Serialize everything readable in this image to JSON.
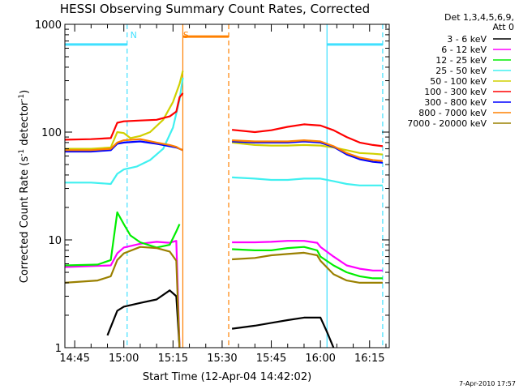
{
  "chart_data": {
    "type": "line",
    "title": "HESSI Observing Summary Count Rates, Corrected",
    "xlabel": "Start Time (12-Apr-04 14:42:02)",
    "ylabel": "Corrected Count Rate (s⁻¹ detector⁻¹)",
    "ylabel_parts": [
      "Corrected Count Rate (s",
      "-1",
      " detector",
      "-1",
      ")"
    ],
    "yscale": "log",
    "xlim": [
      "14:42",
      "16:21"
    ],
    "ylim": [
      1,
      1000
    ],
    "x_ticks": [
      "14:45",
      "15:00",
      "15:15",
      "15:30",
      "15:45",
      "16:00",
      "16:15"
    ],
    "y_ticks": [
      "1",
      "10",
      "100",
      "1000"
    ],
    "legend_title": [
      "Det 1,3,4,5,6,9,",
      "Att 0"
    ],
    "legend_position": "right",
    "timestamp": "7-Apr-2010 17:57",
    "annotations": [
      {
        "label": "N",
        "time": "15:01",
        "color": "#40e0ff"
      },
      {
        "label": "S",
        "time": "15:17",
        "color": "#ff8000"
      }
    ],
    "bars": [
      {
        "name": "night",
        "start": "14:42",
        "end": "15:01",
        "y": 650,
        "color": "#40e0ff"
      },
      {
        "name": "night",
        "start": "16:02",
        "end": "16:19",
        "y": 650,
        "color": "#40e0ff"
      },
      {
        "name": "saa",
        "start": "15:18",
        "end": "15:32",
        "y": 770,
        "color": "#ff8000"
      }
    ],
    "vlines": [
      {
        "time": "15:01",
        "color": "#40e0ff",
        "style": "dashed"
      },
      {
        "time": "16:02",
        "color": "#40e0ff",
        "style": "solid"
      },
      {
        "time": "16:19",
        "color": "#40e0ff",
        "style": "dashed"
      },
      {
        "time": "15:18",
        "color": "#ff8000",
        "style": "solid"
      },
      {
        "time": "15:32",
        "color": "#ff8000",
        "style": "dashed"
      }
    ],
    "series": [
      {
        "name": "3 - 6 keV",
        "color": "#000000",
        "segments": [
          {
            "x": [
              "14:55",
              "14:58",
              "15:00",
              "15:05",
              "15:10",
              "15:14",
              "15:16",
              "15:17"
            ],
            "y": [
              1.3,
              2.2,
              2.4,
              2.6,
              2.8,
              3.4,
              3.0,
              1.0
            ]
          },
          {
            "x": [
              "15:33",
              "15:40",
              "15:45",
              "15:50",
              "15:55",
              "16:00",
              "16:02",
              "16:04"
            ],
            "y": [
              1.5,
              1.6,
              1.7,
              1.8,
              1.9,
              1.9,
              1.4,
              1.0
            ]
          }
        ]
      },
      {
        "name": "6 - 12 keV",
        "color": "#ff00ff",
        "segments": [
          {
            "x": [
              "14:42",
              "14:56",
              "14:58",
              "15:00",
              "15:05",
              "15:10",
              "15:14",
              "15:16",
              "15:17"
            ],
            "y": [
              5.6,
              5.8,
              7.5,
              8.5,
              9.2,
              9.6,
              9.4,
              9.8,
              1.0
            ]
          },
          {
            "x": [
              "15:33",
              "15:40",
              "15:45",
              "15:50",
              "15:55",
              "15:59",
              "16:00",
              "16:04",
              "16:08",
              "16:12",
              "16:16",
              "16:19"
            ],
            "y": [
              9.5,
              9.5,
              9.6,
              9.8,
              9.8,
              9.4,
              8.6,
              7.0,
              5.8,
              5.4,
              5.2,
              5.2
            ]
          }
        ]
      },
      {
        "name": "12 - 25 keV",
        "color": "#00ee00",
        "segments": [
          {
            "x": [
              "14:42",
              "14:52",
              "14:56",
              "14:58",
              "15:00",
              "15:02",
              "15:05",
              "15:10",
              "15:14",
              "15:16",
              "15:17"
            ],
            "y": [
              5.8,
              5.9,
              6.5,
              18,
              14,
              11,
              9.5,
              8.5,
              9.0,
              12,
              14
            ]
          },
          {
            "x": [
              "15:33",
              "15:40",
              "15:45",
              "15:50",
              "15:55",
              "15:59",
              "16:00",
              "16:04",
              "16:08",
              "16:12",
              "16:16",
              "16:19"
            ],
            "y": [
              8.2,
              8.0,
              8.0,
              8.4,
              8.6,
              8.0,
              7.0,
              5.8,
              5.0,
              4.6,
              4.4,
              4.4
            ]
          }
        ]
      },
      {
        "name": "25 - 50 keV",
        "color": "#40f0f0",
        "segments": [
          {
            "x": [
              "14:42",
              "14:50",
              "14:56",
              "14:58",
              "15:00",
              "15:04",
              "15:08",
              "15:12",
              "15:15",
              "15:17",
              "15:18"
            ],
            "y": [
              34,
              34,
              33,
              41,
              45,
              48,
              55,
              70,
              110,
              200,
              320
            ]
          },
          {
            "x": [
              "15:33",
              "15:40",
              "15:45",
              "15:50",
              "15:55",
              "16:00",
              "16:04",
              "16:08",
              "16:12",
              "16:16",
              "16:19"
            ],
            "y": [
              38,
              37,
              36,
              36,
              37,
              37,
              35,
              33,
              32,
              32,
              32
            ]
          }
        ]
      },
      {
        "name": "50 - 100 keV",
        "color": "#d0d000",
        "segments": [
          {
            "x": [
              "14:42",
              "14:50",
              "14:56",
              "14:58",
              "15:00",
              "15:02",
              "15:05",
              "15:08",
              "15:12",
              "15:15",
              "15:17",
              "15:18"
            ],
            "y": [
              70,
              70,
              72,
              100,
              98,
              88,
              92,
              100,
              130,
              190,
              280,
              370
            ]
          },
          {
            "x": [
              "15:33",
              "15:40",
              "15:45",
              "15:50",
              "15:55",
              "16:00",
              "16:04",
              "16:08",
              "16:12",
              "16:16",
              "16:19"
            ],
            "y": [
              80,
              76,
              75,
              75,
              76,
              75,
              72,
              68,
              64,
              63,
              62
            ]
          }
        ]
      },
      {
        "name": "100 - 300 keV",
        "color": "#ff0000",
        "segments": [
          {
            "x": [
              "14:42",
              "14:50",
              "14:56",
              "14:58",
              "15:00",
              "15:05",
              "15:10",
              "15:14",
              "15:16",
              "15:17",
              "15:18"
            ],
            "y": [
              85,
              86,
              88,
              122,
              126,
              128,
              130,
              140,
              155,
              210,
              230
            ]
          },
          {
            "x": [
              "15:33",
              "15:40",
              "15:45",
              "15:50",
              "15:55",
              "16:00",
              "16:04",
              "16:08",
              "16:12",
              "16:16",
              "16:19"
            ],
            "y": [
              105,
              100,
              104,
              112,
              118,
              115,
              104,
              90,
              80,
              76,
              74
            ]
          }
        ]
      },
      {
        "name": "300 - 800 keV",
        "color": "#0000ff",
        "segments": [
          {
            "x": [
              "14:42",
              "14:50",
              "14:56",
              "14:58",
              "15:00",
              "15:05",
              "15:10",
              "15:14",
              "15:16",
              "15:17",
              "15:18"
            ],
            "y": [
              66,
              66,
              68,
              78,
              80,
              82,
              78,
              74,
              72,
              70,
              68
            ]
          },
          {
            "x": [
              "15:33",
              "15:40",
              "15:45",
              "15:50",
              "15:55",
              "16:00",
              "16:04",
              "16:08",
              "16:12",
              "16:16",
              "16:19"
            ],
            "y": [
              82,
              80,
              80,
              80,
              82,
              80,
              73,
              62,
              56,
              53,
              52
            ]
          }
        ]
      },
      {
        "name": "800 - 7000 keV",
        "color": "#ff8000",
        "segments": [
          {
            "x": [
              "14:42",
              "14:50",
              "14:56",
              "14:58",
              "15:00",
              "15:05",
              "15:10",
              "15:14",
              "15:16",
              "15:17",
              "15:18"
            ],
            "y": [
              68,
              68,
              70,
              80,
              84,
              86,
              80,
              76,
              73,
              70,
              68
            ]
          },
          {
            "x": [
              "15:33",
              "15:40",
              "15:45",
              "15:50",
              "15:55",
              "16:00",
              "16:04",
              "16:08",
              "16:12",
              "16:16",
              "16:19"
            ],
            "y": [
              84,
              82,
              82,
              82,
              84,
              82,
              74,
              64,
              58,
              55,
              54
            ]
          }
        ]
      },
      {
        "name": "7000 - 20000 keV",
        "color": "#9a8000",
        "segments": [
          {
            "x": [
              "14:42",
              "14:52",
              "14:56",
              "14:58",
              "15:00",
              "15:05",
              "15:10",
              "15:14",
              "15:16",
              "15:17"
            ],
            "y": [
              4.0,
              4.2,
              4.6,
              6.5,
              7.5,
              8.6,
              8.4,
              7.8,
              6.4,
              1.0
            ]
          },
          {
            "x": [
              "15:33",
              "15:40",
              "15:45",
              "15:50",
              "15:55",
              "15:59",
              "16:00",
              "16:04",
              "16:08",
              "16:12",
              "16:16",
              "16:19"
            ],
            "y": [
              6.6,
              6.8,
              7.2,
              7.4,
              7.6,
              7.2,
              6.4,
              4.8,
              4.2,
              4.0,
              4.0,
              4.0
            ]
          }
        ]
      }
    ]
  }
}
